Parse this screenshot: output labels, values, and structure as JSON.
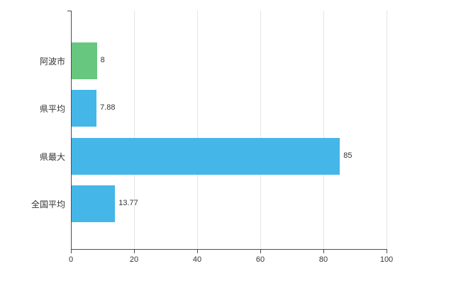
{
  "chart_data": {
    "type": "bar",
    "orientation": "horizontal",
    "title": "",
    "xlabel": "",
    "ylabel": "",
    "categories": [
      "阿波市",
      "県平均",
      "県最大",
      "全国平均"
    ],
    "values": [
      8,
      7.88,
      85,
      13.77
    ],
    "value_labels": [
      "8",
      "7.88",
      "85",
      "13.77"
    ],
    "series": [
      {
        "name": "value",
        "values": [
          8,
          7.88,
          85,
          13.77
        ]
      }
    ],
    "colors": [
      "#68c77f",
      "#45b6e8",
      "#45b6e8",
      "#45b6e8"
    ],
    "xlim": [
      0,
      100
    ],
    "xticks": [
      0,
      20,
      40,
      60,
      80,
      100
    ],
    "xtick_labels": [
      "0",
      "20",
      "40",
      "60",
      "80",
      "100"
    ],
    "grid": "vertical",
    "legend": "none",
    "background_color": "#ffffff",
    "axis_color": "#4d4d4d",
    "gridline_color": "#e5e5e5"
  }
}
